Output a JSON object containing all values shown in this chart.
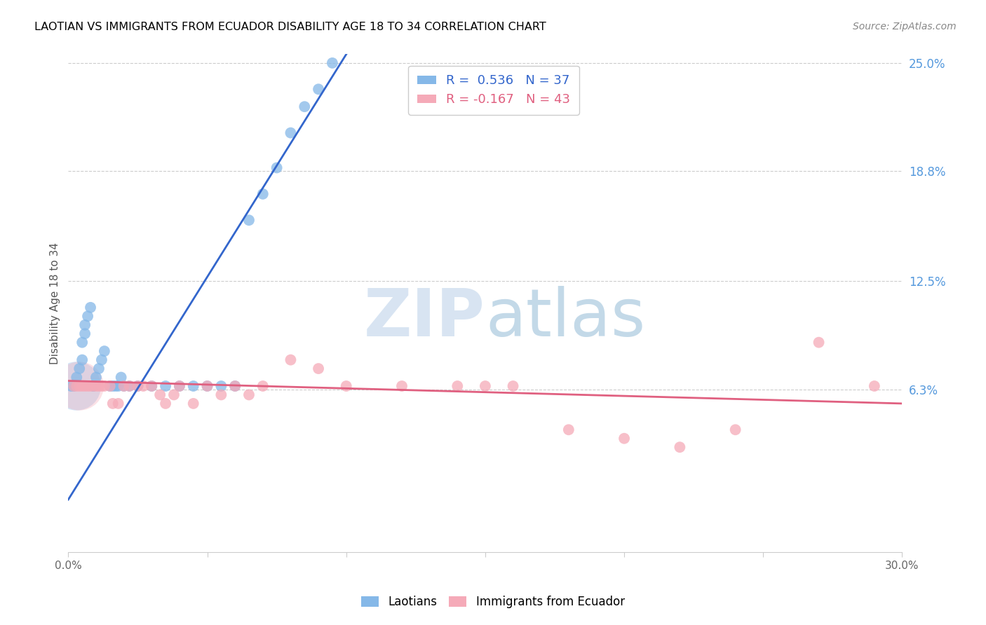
{
  "title": "LAOTIAN VS IMMIGRANTS FROM ECUADOR DISABILITY AGE 18 TO 34 CORRELATION CHART",
  "source": "Source: ZipAtlas.com",
  "ylabel": "Disability Age 18 to 34",
  "x_min": 0.0,
  "x_max": 0.3,
  "y_min": -0.03,
  "y_max": 0.255,
  "y_ticks": [
    0.063,
    0.125,
    0.188,
    0.25
  ],
  "y_tick_labels": [
    "6.3%",
    "12.5%",
    "18.8%",
    "25.0%"
  ],
  "laotian_R": 0.536,
  "laotian_N": 37,
  "ecuador_R": -0.167,
  "ecuador_N": 43,
  "blue_color": "#85b8e8",
  "pink_color": "#f5aab8",
  "blue_line_color": "#3366cc",
  "pink_line_color": "#e06080",
  "watermark_zip": "ZIP",
  "watermark_atlas": "atlas",
  "laotian_x": [
    0.001,
    0.002,
    0.003,
    0.004,
    0.005,
    0.005,
    0.006,
    0.006,
    0.007,
    0.008,
    0.009,
    0.01,
    0.011,
    0.012,
    0.013,
    0.015,
    0.016,
    0.017,
    0.018,
    0.019,
    0.02,
    0.022,
    0.025,
    0.03,
    0.035,
    0.04,
    0.045,
    0.05,
    0.055,
    0.06,
    0.065,
    0.07,
    0.075,
    0.08,
    0.085,
    0.09,
    0.095
  ],
  "laotian_y": [
    0.065,
    0.065,
    0.07,
    0.075,
    0.08,
    0.09,
    0.095,
    0.1,
    0.105,
    0.11,
    0.065,
    0.07,
    0.075,
    0.08,
    0.085,
    0.065,
    0.065,
    0.065,
    0.065,
    0.07,
    0.065,
    0.065,
    0.065,
    0.065,
    0.065,
    0.065,
    0.065,
    0.065,
    0.065,
    0.065,
    0.16,
    0.175,
    0.19,
    0.21,
    0.225,
    0.235,
    0.25
  ],
  "ecuador_x": [
    0.002,
    0.003,
    0.004,
    0.005,
    0.006,
    0.007,
    0.008,
    0.009,
    0.01,
    0.011,
    0.012,
    0.013,
    0.015,
    0.016,
    0.018,
    0.02,
    0.022,
    0.025,
    0.027,
    0.03,
    0.033,
    0.035,
    0.038,
    0.04,
    0.045,
    0.05,
    0.055,
    0.06,
    0.065,
    0.07,
    0.08,
    0.09,
    0.1,
    0.12,
    0.14,
    0.15,
    0.16,
    0.18,
    0.2,
    0.22,
    0.24,
    0.27,
    0.29
  ],
  "ecuador_y": [
    0.065,
    0.065,
    0.065,
    0.065,
    0.065,
    0.065,
    0.065,
    0.065,
    0.065,
    0.065,
    0.065,
    0.065,
    0.065,
    0.055,
    0.055,
    0.065,
    0.065,
    0.065,
    0.065,
    0.065,
    0.06,
    0.055,
    0.06,
    0.065,
    0.055,
    0.065,
    0.06,
    0.065,
    0.06,
    0.065,
    0.08,
    0.075,
    0.065,
    0.065,
    0.065,
    0.065,
    0.065,
    0.04,
    0.035,
    0.03,
    0.04,
    0.09,
    0.065
  ],
  "blue_trend_x": [
    0.0,
    0.1
  ],
  "blue_trend_y": [
    0.0,
    0.255
  ],
  "pink_trend_x": [
    0.0,
    0.3
  ],
  "pink_trend_y": [
    0.068,
    0.055
  ]
}
